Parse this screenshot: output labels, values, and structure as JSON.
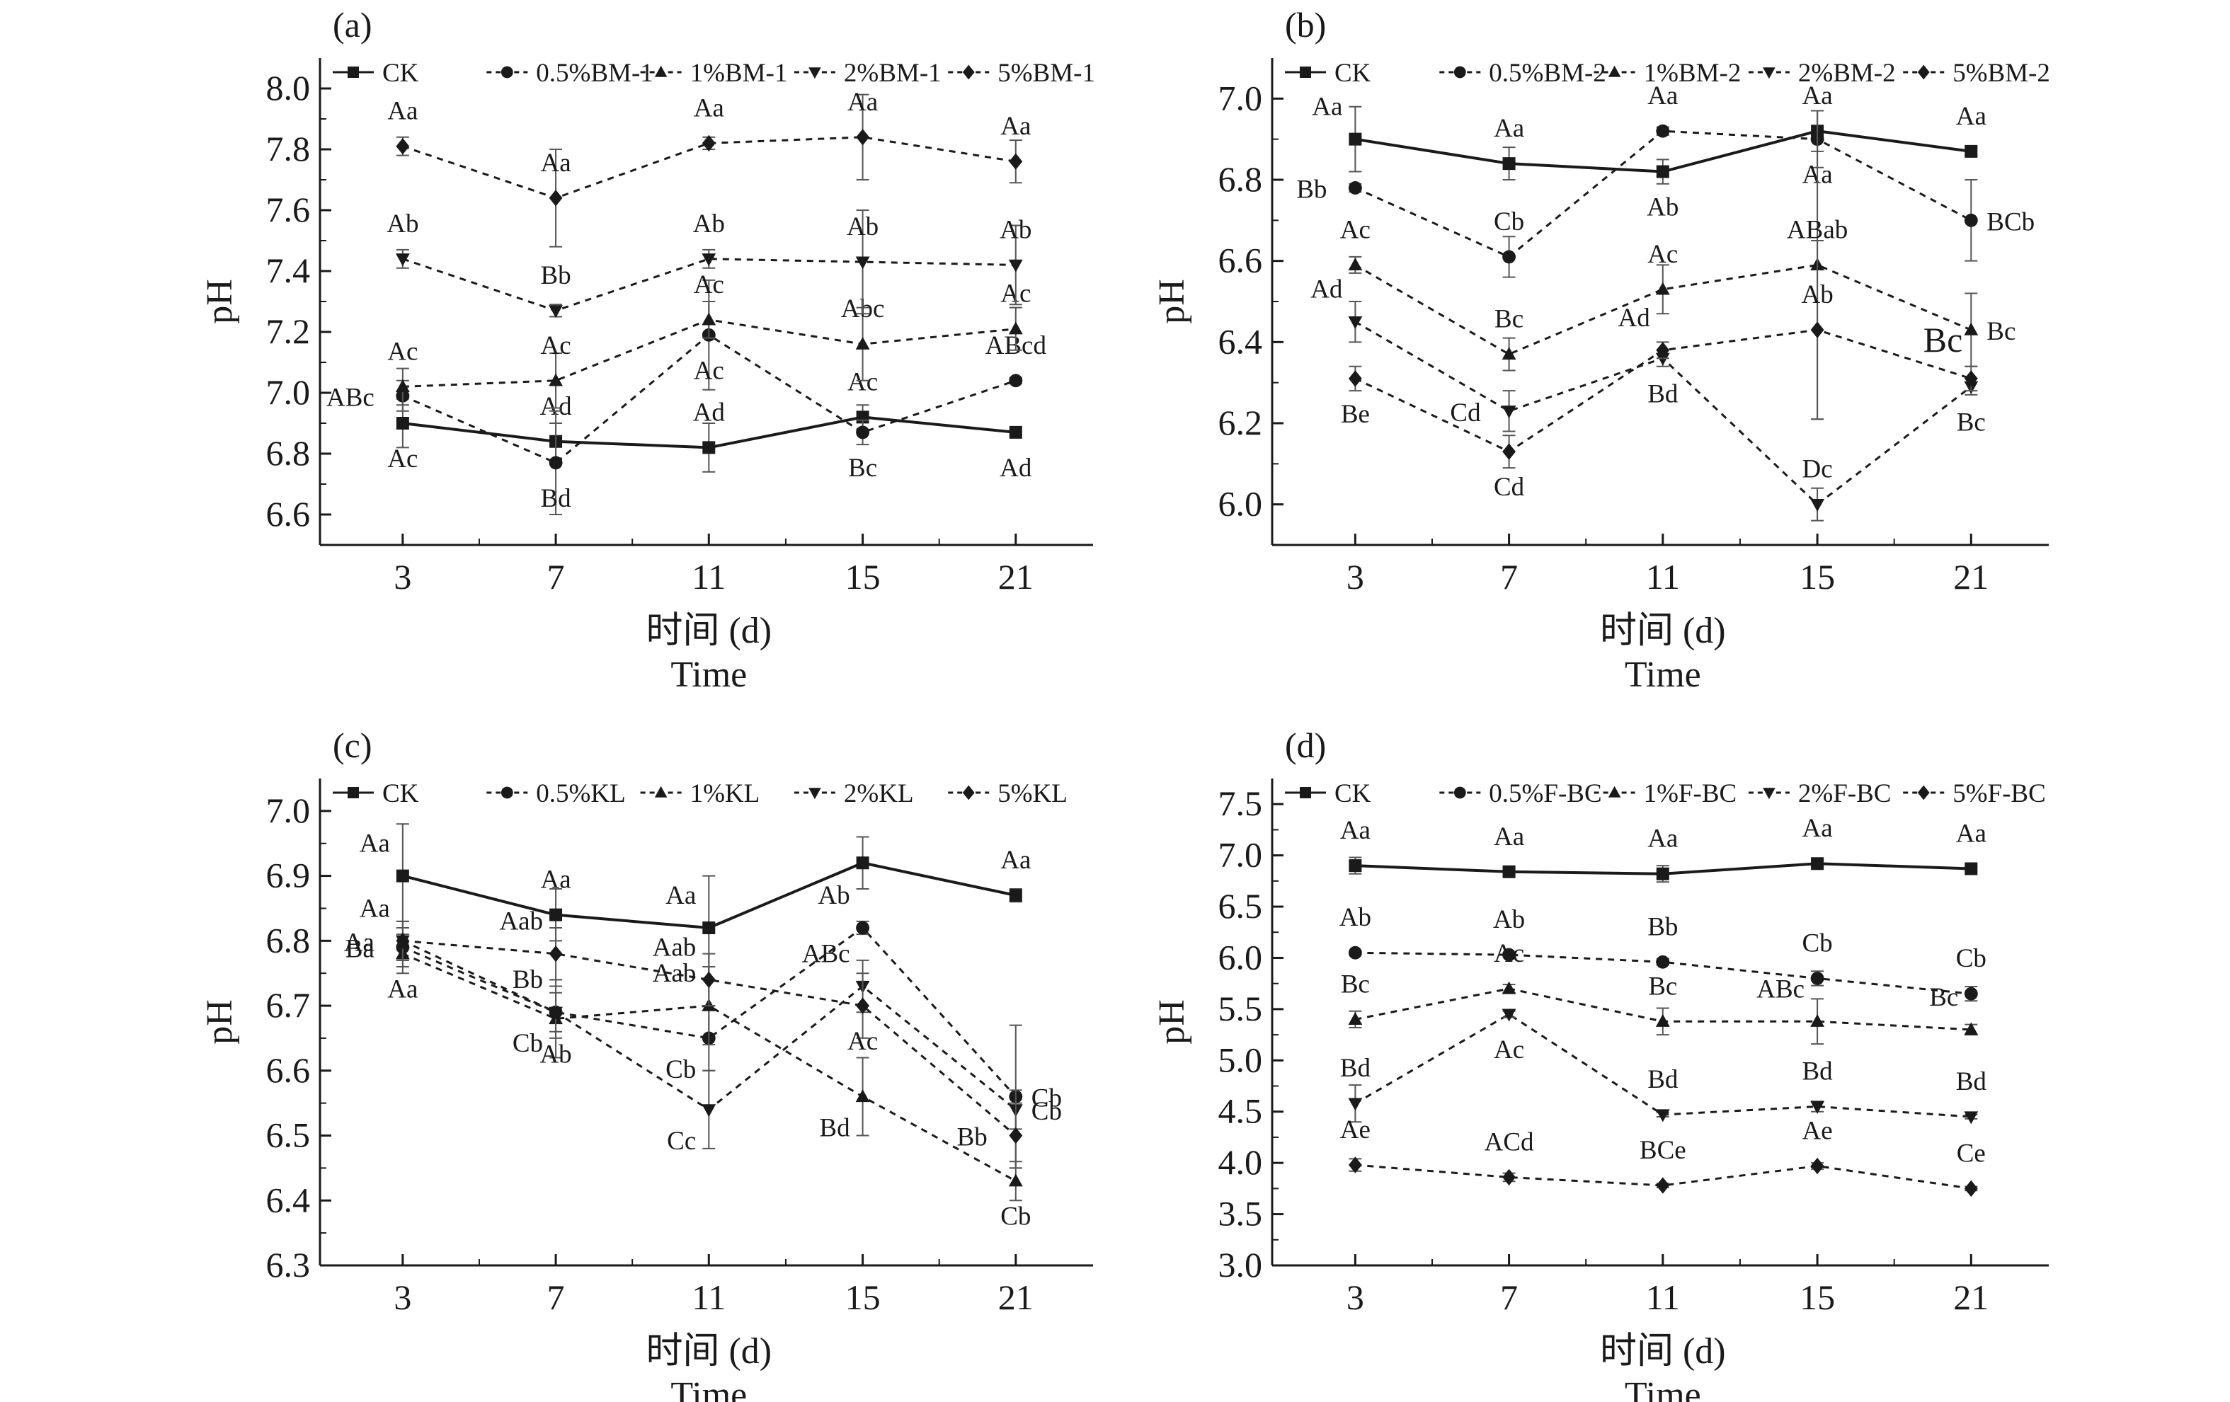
{
  "chart_data": [
    {
      "type": "line",
      "panel": "(a)",
      "x": [
        3,
        7,
        11,
        15,
        21
      ],
      "xlabel_cn": "时间 (d)",
      "xlabel_en": "Time",
      "ylabel": "pH",
      "ylim": [
        6.5,
        8.1
      ],
      "yticks": [
        6.6,
        6.8,
        7.0,
        7.2,
        7.4,
        7.6,
        7.8,
        8.0
      ],
      "ytick_labels": [
        "6.6",
        "6.8",
        "7.0",
        "7.2",
        "7.4",
        "7.6",
        "7.8",
        "8.0"
      ],
      "legend": "top",
      "series": [
        {
          "name": "CK",
          "marker": "square",
          "dash": "solid",
          "values": [
            6.9,
            6.84,
            6.82,
            6.92,
            6.87
          ],
          "err": [
            0.08,
            0.06,
            0.08,
            0.04,
            0.01
          ],
          "labels": [
            "Ac",
            "Ad",
            "Ad",
            "Ac",
            "Ad"
          ],
          "label_pos": [
            "below",
            "above",
            "above",
            "above",
            "below"
          ]
        },
        {
          "name": "0.5%BM-1",
          "marker": "circle",
          "dash": "dashed",
          "values": [
            6.99,
            6.77,
            7.19,
            6.87,
            7.04
          ],
          "err": [
            0.05,
            0.17,
            0.18,
            0.04,
            0.01
          ],
          "labels": [
            "ABc",
            "Bd",
            "Ac",
            "Bc",
            "ABcd"
          ],
          "label_pos": [
            "left",
            "below",
            "below",
            "below",
            "above"
          ]
        },
        {
          "name": "1%BM-1",
          "marker": "triangle-up",
          "dash": "dashed",
          "values": [
            7.02,
            7.04,
            7.24,
            7.16,
            7.21
          ],
          "err": [
            0.06,
            0.09,
            0.06,
            0.12,
            0.07
          ],
          "labels": [
            "Ac",
            "Ac",
            "Ac",
            "Abc",
            "Ac"
          ],
          "label_pos": [
            "above",
            "above",
            "above",
            "above",
            "above"
          ]
        },
        {
          "name": "2%BM-1",
          "marker": "triangle-down",
          "dash": "dashed",
          "values": [
            7.44,
            7.27,
            7.44,
            7.43,
            7.42
          ],
          "err": [
            0.03,
            0.02,
            0.03,
            0.17,
            0.13
          ],
          "labels": [
            "Ab",
            "Bb",
            "Ab",
            "Ab",
            "Ab"
          ],
          "label_pos": [
            "above",
            "above",
            "above",
            "above",
            "above"
          ]
        },
        {
          "name": "5%BM-1",
          "marker": "diamond",
          "dash": "dashed",
          "values": [
            7.81,
            7.64,
            7.82,
            7.84,
            7.76
          ],
          "err": [
            0.03,
            0.16,
            0.02,
            0.14,
            0.07
          ],
          "labels": [
            "Aa",
            "Aa",
            "Aa",
            "Aa",
            "Aa"
          ],
          "label_pos": [
            "above",
            "above",
            "above",
            "above",
            "above"
          ]
        }
      ]
    },
    {
      "type": "line",
      "panel": "(b)",
      "x": [
        3,
        7,
        11,
        15,
        21
      ],
      "xlabel_cn": "时间 (d)",
      "xlabel_en": "Time",
      "ylabel": "pH",
      "ylim": [
        5.9,
        7.1
      ],
      "yticks": [
        6.0,
        6.2,
        6.4,
        6.6,
        6.8,
        7.0
      ],
      "ytick_labels": [
        "6.0",
        "6.2",
        "6.4",
        "6.6",
        "6.8",
        "7.0"
      ],
      "legend": "top",
      "series": [
        {
          "name": "CK",
          "marker": "square",
          "dash": "solid",
          "values": [
            6.9,
            6.84,
            6.82,
            6.92,
            6.87
          ],
          "err": [
            0.08,
            0.04,
            0.03,
            0.05,
            0.01
          ],
          "labels": [
            "Aa",
            "Aa",
            "Ab",
            "Aa",
            "Aa"
          ],
          "label_pos": [
            "above-left",
            "above",
            "below",
            "above",
            "above"
          ]
        },
        {
          "name": "0.5%BM-2",
          "marker": "circle",
          "dash": "dashed",
          "values": [
            6.78,
            6.61,
            6.92,
            6.9,
            6.7
          ],
          "err": [
            0.01,
            0.05,
            0.01,
            0.07,
            0.1
          ],
          "labels": [
            "Bb",
            "Cb",
            "Aa",
            "Aa",
            "BCb"
          ],
          "label_pos": [
            "left",
            "above",
            "above",
            "below",
            "right"
          ]
        },
        {
          "name": "1%BM-2",
          "marker": "triangle-up",
          "dash": "dashed",
          "values": [
            6.59,
            6.37,
            6.53,
            6.59,
            6.43
          ],
          "err": [
            0.02,
            0.04,
            0.06,
            0.38,
            0.09
          ],
          "labels": [
            "Ac",
            "Bc",
            "Ac",
            "ABab",
            "Bc"
          ],
          "label_pos": [
            "above",
            "above",
            "above",
            "above",
            "right"
          ]
        },
        {
          "name": "2%BM-2",
          "marker": "triangle-down",
          "dash": "dashed",
          "values": [
            6.45,
            6.23,
            6.36,
            6.0,
            6.29
          ],
          "err": [
            0.05,
            0.05,
            0.02,
            0.04,
            0.02
          ],
          "labels": [
            "Ad",
            "Cd",
            "Bd",
            "Dc",
            "Bc"
          ],
          "label_pos": [
            "above-left",
            "left",
            "below",
            "above",
            "below"
          ]
        },
        {
          "name": "5%BM-2",
          "marker": "diamond",
          "dash": "dashed",
          "values": [
            6.31,
            6.13,
            6.38,
            6.43,
            6.31
          ],
          "err": [
            0.03,
            0.04,
            0.02,
            0.22,
            0.03
          ],
          "labels": [
            "Be",
            "Cd",
            "Ad",
            "Ab",
            "Bc"
          ],
          "label_pos": [
            "below",
            "below",
            "above-left",
            "above",
            "above-left-big"
          ]
        }
      ]
    },
    {
      "type": "line",
      "panel": "(c)",
      "x": [
        3,
        7,
        11,
        15,
        21
      ],
      "xlabel_cn": "时间 (d)",
      "xlabel_en": "Time",
      "ylabel": "pH",
      "ylim": [
        6.3,
        7.05
      ],
      "yticks": [
        6.3,
        6.4,
        6.5,
        6.6,
        6.7,
        6.8,
        6.9,
        7.0
      ],
      "ytick_labels": [
        "6.3",
        "6.4",
        "6.5",
        "6.6",
        "6.7",
        "6.8",
        "6.9",
        "7.0"
      ],
      "legend": "top",
      "series": [
        {
          "name": "CK",
          "marker": "square",
          "dash": "solid",
          "values": [
            6.9,
            6.84,
            6.82,
            6.92,
            6.87
          ],
          "err": [
            0.08,
            0.04,
            0.08,
            0.04,
            0.01
          ],
          "labels": [
            "Aa",
            "Aa",
            "Aa",
            "",
            "Aa"
          ],
          "label_pos": [
            "above-left",
            "above",
            "above-left",
            "above",
            "above"
          ]
        },
        {
          "name": "0.5%KL",
          "marker": "circle",
          "dash": "dashed",
          "values": [
            6.79,
            6.69,
            6.65,
            6.82,
            6.56
          ],
          "err": [
            0.03,
            0.03,
            0.05,
            0.01,
            0.11
          ],
          "labels": [
            "Ba",
            "Cb",
            "Cb",
            "Ab",
            "Cb"
          ],
          "label_pos": [
            "left",
            "below-left",
            "below-left",
            "above-left",
            "right"
          ]
        },
        {
          "name": "1%KL",
          "marker": "triangle-up",
          "dash": "dashed",
          "values": [
            6.78,
            6.68,
            6.7,
            6.56,
            6.43
          ],
          "err": [
            0.03,
            0.06,
            0.06,
            0.06,
            0.03
          ],
          "labels": [
            "Aa",
            "Ab",
            "Aab",
            "Bd",
            "Cb"
          ],
          "label_pos": [
            "below",
            "below",
            "above-left",
            "below-left",
            "below"
          ]
        },
        {
          "name": "2%KL",
          "marker": "triangle-down",
          "dash": "dashed",
          "values": [
            6.8,
            6.69,
            6.54,
            6.73,
            6.54
          ],
          "err": [
            0.03,
            0.04,
            0.06,
            0.04,
            0.03
          ],
          "labels": [
            "Aa",
            "Bb",
            "Cc",
            "ABc",
            "Cb"
          ],
          "label_pos": [
            "above-left",
            "above-left",
            "below-left",
            "above-left",
            "right"
          ]
        },
        {
          "name": "5%KL",
          "marker": "diamond",
          "dash": "dashed",
          "values": [
            6.8,
            6.78,
            6.74,
            6.7,
            6.5
          ],
          "err": [
            0.03,
            0.04,
            0.04,
            0.05,
            0.05
          ],
          "labels": [
            "Aa",
            "Aab",
            "Aab",
            "Ac",
            "Bb"
          ],
          "label_pos": [
            "left",
            "above-left",
            "above-left",
            "below",
            "left"
          ]
        }
      ]
    },
    {
      "type": "line",
      "panel": "(d)",
      "x": [
        3,
        7,
        11,
        15,
        21
      ],
      "xlabel_cn": "时间 (d)",
      "xlabel_en": "Time",
      "ylabel": "pH",
      "ylim": [
        3.0,
        7.75
      ],
      "yticks": [
        3.0,
        3.5,
        4.0,
        4.5,
        5.0,
        5.5,
        6.0,
        6.5,
        7.0,
        7.5
      ],
      "ytick_labels": [
        "3.0",
        "3.5",
        "4.0",
        "4.5",
        "5.0",
        "5.5",
        "6.0",
        "6.5",
        "7.0",
        "7.5"
      ],
      "legend": "top",
      "series": [
        {
          "name": "CK",
          "marker": "square",
          "dash": "solid",
          "values": [
            6.9,
            6.84,
            6.82,
            6.92,
            6.87
          ],
          "err": [
            0.08,
            0.04,
            0.08,
            0.03,
            0.02
          ],
          "labels": [
            "Aa",
            "Aa",
            "Aa",
            "Aa",
            "Aa"
          ],
          "label_pos": [
            "above",
            "above",
            "above",
            "above",
            "above"
          ]
        },
        {
          "name": "0.5%F-BC",
          "marker": "circle",
          "dash": "dashed",
          "values": [
            6.05,
            6.03,
            5.96,
            5.8,
            5.65
          ],
          "err": [
            0.02,
            0.02,
            0.03,
            0.07,
            0.07
          ],
          "labels": [
            "Ab",
            "Ab",
            "Bb",
            "Cb",
            "Cb"
          ],
          "label_pos": [
            "above",
            "above",
            "above",
            "above",
            "above"
          ]
        },
        {
          "name": "1%F-BC",
          "marker": "triangle-up",
          "dash": "dashed",
          "values": [
            5.4,
            5.7,
            5.38,
            5.38,
            5.3
          ],
          "err": [
            0.08,
            0.04,
            0.13,
            0.22,
            0.05
          ],
          "labels": [
            "Bc",
            "Ac",
            "Bc",
            "ABc",
            "Bc"
          ],
          "label_pos": [
            "above",
            "above",
            "above",
            "above-left",
            "above-left"
          ]
        },
        {
          "name": "2%F-BC",
          "marker": "triangle-down",
          "dash": "dashed",
          "values": [
            4.58,
            5.45,
            4.47,
            4.55,
            4.45
          ],
          "err": [
            0.18,
            0.03,
            0.02,
            0.05,
            0.02
          ],
          "labels": [
            "Bd",
            "Ac",
            "Bd",
            "Bd",
            "Bd"
          ],
          "label_pos": [
            "above",
            "below",
            "above",
            "above",
            "above"
          ]
        },
        {
          "name": "5%F-BC",
          "marker": "diamond",
          "dash": "dashed",
          "values": [
            3.98,
            3.86,
            3.78,
            3.97,
            3.75
          ],
          "err": [
            0.06,
            0.04,
            0.02,
            0.03,
            0.02
          ],
          "labels": [
            "Ae",
            "ACd",
            "BCe",
            "Ae",
            "Ce"
          ],
          "label_pos": [
            "above",
            "above",
            "above",
            "above",
            "above"
          ]
        }
      ]
    }
  ]
}
